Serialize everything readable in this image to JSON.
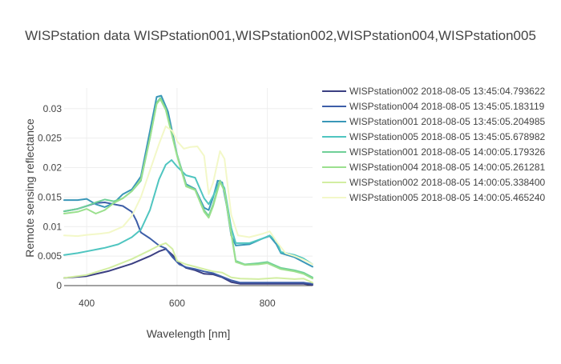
{
  "chart_data": {
    "type": "line",
    "title": "WISPstation data WISPstation001,WISPstation002,WISPstation004,WISPstation005",
    "xlabel": "Wavelength [nm]",
    "ylabel": "Remote sensing reflectance",
    "xlim": [
      350,
      900
    ],
    "ylim": [
      0,
      0.0335
    ],
    "xticks": [
      400,
      600,
      800
    ],
    "xtick_labels": [
      "400",
      "600",
      "800"
    ],
    "yticks": [
      0,
      0.005,
      0.01,
      0.015,
      0.02,
      0.025,
      0.03
    ],
    "ytick_labels": [
      "0",
      "0.005",
      "0.01",
      "0.015",
      "0.02",
      "0.025",
      "0.03"
    ],
    "grid": true,
    "legend_position": "top-right",
    "series": [
      {
        "name": "WISPstation002 2018-08-05 13:45:04.793622",
        "color": "#3b3f82",
        "points": [
          [
            350,
            0.0013
          ],
          [
            400,
            0.0016
          ],
          [
            450,
            0.0025
          ],
          [
            500,
            0.0037
          ],
          [
            540,
            0.005
          ],
          [
            560,
            0.0058
          ],
          [
            575,
            0.0062
          ],
          [
            590,
            0.0052
          ],
          [
            605,
            0.0038
          ],
          [
            620,
            0.003
          ],
          [
            640,
            0.0026
          ],
          [
            660,
            0.002
          ],
          [
            680,
            0.0019
          ],
          [
            700,
            0.0014
          ],
          [
            720,
            0.0006
          ],
          [
            740,
            0.0003
          ],
          [
            800,
            0.0003
          ],
          [
            850,
            0.0003
          ],
          [
            880,
            0.0003
          ],
          [
            900,
            0.0001
          ]
        ]
      },
      {
        "name": "WISPstation004 2018-08-05 13:45:05.183119",
        "color": "#3d5ea8",
        "points": [
          [
            350,
            0.0126
          ],
          [
            380,
            0.013
          ],
          [
            400,
            0.0135
          ],
          [
            420,
            0.014
          ],
          [
            440,
            0.0141
          ],
          [
            460,
            0.0138
          ],
          [
            480,
            0.0135
          ],
          [
            500,
            0.0125
          ],
          [
            510,
            0.011
          ],
          [
            520,
            0.009
          ],
          [
            540,
            0.008
          ],
          [
            560,
            0.0068
          ],
          [
            575,
            0.0063
          ],
          [
            590,
            0.0048
          ],
          [
            605,
            0.0036
          ],
          [
            620,
            0.0031
          ],
          [
            640,
            0.0028
          ],
          [
            660,
            0.0024
          ],
          [
            680,
            0.0021
          ],
          [
            700,
            0.0015
          ],
          [
            720,
            0.0009
          ],
          [
            740,
            0.0005
          ],
          [
            800,
            0.0005
          ],
          [
            850,
            0.0005
          ],
          [
            880,
            0.0005
          ],
          [
            900,
            0.0003
          ]
        ]
      },
      {
        "name": "WISPstation001 2018-08-05 13:45:05.204985",
        "color": "#3a97b8",
        "points": [
          [
            350,
            0.0145
          ],
          [
            380,
            0.0145
          ],
          [
            400,
            0.0147
          ],
          [
            420,
            0.0138
          ],
          [
            440,
            0.0133
          ],
          [
            460,
            0.014
          ],
          [
            480,
            0.0155
          ],
          [
            500,
            0.0163
          ],
          [
            520,
            0.0185
          ],
          [
            540,
            0.0262
          ],
          [
            555,
            0.032
          ],
          [
            565,
            0.0322
          ],
          [
            580,
            0.0295
          ],
          [
            600,
            0.0222
          ],
          [
            620,
            0.0172
          ],
          [
            640,
            0.0164
          ],
          [
            660,
            0.0132
          ],
          [
            670,
            0.0128
          ],
          [
            680,
            0.015
          ],
          [
            690,
            0.0178
          ],
          [
            700,
            0.0175
          ],
          [
            710,
            0.0135
          ],
          [
            720,
            0.0085
          ],
          [
            730,
            0.0068
          ],
          [
            760,
            0.007
          ],
          [
            790,
            0.008
          ],
          [
            805,
            0.0084
          ],
          [
            820,
            0.007
          ],
          [
            830,
            0.0055
          ],
          [
            860,
            0.0048
          ],
          [
            880,
            0.004
          ],
          [
            900,
            0.0032
          ]
        ]
      },
      {
        "name": "WISPstation005 2018-08-05 13:45:05.678982",
        "color": "#4fc5c0",
        "points": [
          [
            350,
            0.0052
          ],
          [
            380,
            0.0055
          ],
          [
            400,
            0.0058
          ],
          [
            440,
            0.0064
          ],
          [
            470,
            0.007
          ],
          [
            500,
            0.0082
          ],
          [
            520,
            0.0095
          ],
          [
            540,
            0.0128
          ],
          [
            560,
            0.018
          ],
          [
            575,
            0.0205
          ],
          [
            588,
            0.0213
          ],
          [
            600,
            0.0202
          ],
          [
            620,
            0.0187
          ],
          [
            640,
            0.0183
          ],
          [
            660,
            0.0148
          ],
          [
            670,
            0.0138
          ],
          [
            680,
            0.0152
          ],
          [
            695,
            0.0178
          ],
          [
            705,
            0.0165
          ],
          [
            720,
            0.0098
          ],
          [
            730,
            0.0072
          ],
          [
            760,
            0.0072
          ],
          [
            790,
            0.008
          ],
          [
            805,
            0.0085
          ],
          [
            820,
            0.0075
          ],
          [
            830,
            0.0057
          ],
          [
            860,
            0.0052
          ],
          [
            880,
            0.0046
          ],
          [
            900,
            0.0036
          ]
        ]
      },
      {
        "name": "WISPstation001 2018-08-05 14:00:05.179326",
        "color": "#6fd098",
        "points": [
          [
            350,
            0.0126
          ],
          [
            380,
            0.013
          ],
          [
            400,
            0.0135
          ],
          [
            420,
            0.0141
          ],
          [
            440,
            0.0146
          ],
          [
            460,
            0.0143
          ],
          [
            480,
            0.0148
          ],
          [
            500,
            0.016
          ],
          [
            520,
            0.0178
          ],
          [
            540,
            0.025
          ],
          [
            555,
            0.031
          ],
          [
            563,
            0.0318
          ],
          [
            575,
            0.03
          ],
          [
            600,
            0.0222
          ],
          [
            620,
            0.017
          ],
          [
            640,
            0.0163
          ],
          [
            660,
            0.0128
          ],
          [
            670,
            0.0118
          ],
          [
            680,
            0.0138
          ],
          [
            695,
            0.0178
          ],
          [
            705,
            0.0162
          ],
          [
            720,
            0.009
          ],
          [
            730,
            0.0042
          ],
          [
            750,
            0.0036
          ],
          [
            780,
            0.0038
          ],
          [
            800,
            0.004
          ],
          [
            830,
            0.003
          ],
          [
            860,
            0.0026
          ],
          [
            880,
            0.0022
          ],
          [
            900,
            0.0014
          ]
        ]
      },
      {
        "name": "WISPstation004 2018-08-05 14:00:05.261281",
        "color": "#9be08e",
        "points": [
          [
            350,
            0.0122
          ],
          [
            380,
            0.0125
          ],
          [
            400,
            0.013
          ],
          [
            420,
            0.0122
          ],
          [
            440,
            0.0128
          ],
          [
            460,
            0.014
          ],
          [
            480,
            0.0148
          ],
          [
            500,
            0.016
          ],
          [
            520,
            0.018
          ],
          [
            540,
            0.025
          ],
          [
            555,
            0.0308
          ],
          [
            563,
            0.0316
          ],
          [
            575,
            0.0298
          ],
          [
            600,
            0.022
          ],
          [
            620,
            0.0168
          ],
          [
            640,
            0.0162
          ],
          [
            660,
            0.0125
          ],
          [
            670,
            0.0115
          ],
          [
            680,
            0.0135
          ],
          [
            695,
            0.0176
          ],
          [
            705,
            0.016
          ],
          [
            720,
            0.0088
          ],
          [
            730,
            0.004
          ],
          [
            750,
            0.0035
          ],
          [
            780,
            0.0036
          ],
          [
            800,
            0.0038
          ],
          [
            830,
            0.0028
          ],
          [
            860,
            0.0024
          ],
          [
            880,
            0.002
          ],
          [
            900,
            0.0012
          ]
        ]
      },
      {
        "name": "WISPstation002 2018-08-05 14:00:05.338400",
        "color": "#d2eea2",
        "points": [
          [
            350,
            0.0013
          ],
          [
            400,
            0.0018
          ],
          [
            450,
            0.003
          ],
          [
            500,
            0.0045
          ],
          [
            540,
            0.006
          ],
          [
            560,
            0.0068
          ],
          [
            575,
            0.0072
          ],
          [
            590,
            0.0062
          ],
          [
            600,
            0.0042
          ],
          [
            620,
            0.0036
          ],
          [
            640,
            0.0032
          ],
          [
            660,
            0.0028
          ],
          [
            680,
            0.0024
          ],
          [
            700,
            0.0022
          ],
          [
            720,
            0.0014
          ],
          [
            740,
            0.0012
          ],
          [
            780,
            0.0011
          ],
          [
            820,
            0.0013
          ],
          [
            860,
            0.0011
          ],
          [
            880,
            0.0012
          ],
          [
            900,
            0.0005
          ]
        ]
      },
      {
        "name": "WISPstation005 2018-08-05 14:00:05.465240",
        "color": "#f3f8c8",
        "points": [
          [
            350,
            0.0085
          ],
          [
            380,
            0.0084
          ],
          [
            400,
            0.0086
          ],
          [
            430,
            0.0088
          ],
          [
            450,
            0.009
          ],
          [
            480,
            0.01
          ],
          [
            500,
            0.0118
          ],
          [
            520,
            0.015
          ],
          [
            540,
            0.0195
          ],
          [
            560,
            0.024
          ],
          [
            575,
            0.027
          ],
          [
            590,
            0.0262
          ],
          [
            600,
            0.0245
          ],
          [
            615,
            0.0232
          ],
          [
            630,
            0.0235
          ],
          [
            645,
            0.0236
          ],
          [
            660,
            0.022
          ],
          [
            670,
            0.0155
          ],
          [
            680,
            0.0175
          ],
          [
            695,
            0.0228
          ],
          [
            705,
            0.0215
          ],
          [
            720,
            0.012
          ],
          [
            735,
            0.0085
          ],
          [
            760,
            0.0082
          ],
          [
            790,
            0.0088
          ],
          [
            805,
            0.0092
          ],
          [
            820,
            0.0075
          ],
          [
            840,
            0.0055
          ],
          [
            860,
            0.005
          ],
          [
            880,
            0.0044
          ],
          [
            900,
            0.0036
          ]
        ]
      }
    ]
  }
}
